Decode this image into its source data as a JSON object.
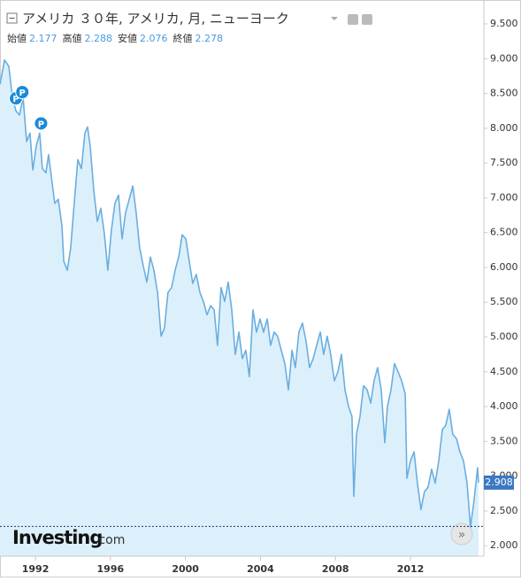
{
  "chart_data": {
    "type": "line",
    "title": "アメリカ ３０年, アメリカ, 月, ニューヨーク",
    "stats": [
      {
        "label": "始値",
        "value": 2.177
      },
      {
        "label": "高値",
        "value": 2.288
      },
      {
        "label": "安値",
        "value": 2.076
      },
      {
        "label": "終値",
        "value": 2.278
      }
    ],
    "logo": [
      "Investing",
      ".com"
    ],
    "annotations": [
      {
        "label": "P",
        "x": 1990.96,
        "y": 8.43
      },
      {
        "label": "P",
        "x": 1991.3,
        "y": 8.52
      },
      {
        "label": "P",
        "x": 1992.3,
        "y": 8.07
      }
    ],
    "xlim": [
      1990.11,
      2015.82
    ],
    "xticks": [
      1992,
      1996,
      2000,
      2004,
      2008,
      2012
    ],
    "ylim": [
      1.85,
      9.78
    ],
    "yticks": [
      {
        "value": 2.0,
        "label": "2.000"
      },
      {
        "value": 2.5,
        "label": "2.500"
      },
      {
        "value": 3.0,
        "label": "3.000"
      },
      {
        "value": 3.5,
        "label": "3.500"
      },
      {
        "value": 4.0,
        "label": "4.000"
      },
      {
        "value": 4.5,
        "label": "4.500"
      },
      {
        "value": 5.0,
        "label": "5.000"
      },
      {
        "value": 5.5,
        "label": "5.500"
      },
      {
        "value": 6.0,
        "label": "6.000"
      },
      {
        "value": 6.5,
        "label": "6.500"
      },
      {
        "value": 7.0,
        "label": "7.000"
      },
      {
        "value": 7.5,
        "label": "7.500"
      },
      {
        "value": 8.0,
        "label": "8.000"
      },
      {
        "value": 8.5,
        "label": "8.500"
      },
      {
        "value": 9.0,
        "label": "9.000"
      },
      {
        "value": 9.5,
        "label": "9.500"
      }
    ],
    "series": [
      {
        "name": "アメリカ ３０年",
        "color": "#6aaee0",
        "x": [
          1990.11,
          1990.35,
          1990.58,
          1990.77,
          1990.96,
          1991.15,
          1991.34,
          1991.53,
          1991.71,
          1991.86,
          1992.04,
          1992.23,
          1992.37,
          1992.56,
          1992.7,
          1992.85,
          1993.03,
          1993.22,
          1993.41,
          1993.51,
          1993.7,
          1993.88,
          1994.07,
          1994.26,
          1994.45,
          1994.64,
          1994.78,
          1994.92,
          1995.11,
          1995.3,
          1995.49,
          1995.68,
          1995.86,
          1996.05,
          1996.24,
          1996.43,
          1996.62,
          1996.81,
          1997.0,
          1997.19,
          1997.37,
          1997.56,
          1997.75,
          1997.94,
          1998.13,
          1998.32,
          1998.51,
          1998.7,
          1998.88,
          1999.07,
          1999.26,
          1999.45,
          1999.64,
          1999.83,
          2000.02,
          2000.2,
          2000.39,
          2000.58,
          2000.77,
          2000.96,
          2001.15,
          2001.34,
          2001.53,
          2001.71,
          2001.9,
          2002.09,
          2002.28,
          2002.47,
          2002.66,
          2002.85,
          2003.03,
          2003.22,
          2003.41,
          2003.6,
          2003.79,
          2003.98,
          2004.17,
          2004.36,
          2004.54,
          2004.73,
          2004.92,
          2005.11,
          2005.3,
          2005.49,
          2005.68,
          2005.86,
          2006.05,
          2006.24,
          2006.43,
          2006.62,
          2006.81,
          2007.0,
          2007.19,
          2007.37,
          2007.56,
          2007.75,
          2007.94,
          2008.13,
          2008.32,
          2008.51,
          2008.7,
          2008.88,
          2008.98,
          2009.12,
          2009.31,
          2009.5,
          2009.69,
          2009.88,
          2010.06,
          2010.25,
          2010.44,
          2010.63,
          2010.77,
          2010.96,
          2011.15,
          2011.34,
          2011.53,
          2011.72,
          2011.81,
          2012.0,
          2012.19,
          2012.37,
          2012.56,
          2012.75,
          2012.94,
          2013.13,
          2013.32,
          2013.51,
          2013.7,
          2013.88,
          2014.07,
          2014.26,
          2014.45,
          2014.64,
          2014.83,
          2015.02,
          2015.2,
          2015.39,
          2015.58,
          2015.63
        ],
        "values": [
          8.63,
          8.98,
          8.89,
          8.44,
          8.25,
          8.19,
          8.44,
          7.81,
          7.93,
          7.4,
          7.74,
          7.93,
          7.42,
          7.36,
          7.62,
          7.3,
          6.92,
          6.98,
          6.6,
          6.09,
          5.96,
          6.28,
          6.92,
          7.55,
          7.42,
          7.93,
          8.02,
          7.74,
          7.11,
          6.66,
          6.85,
          6.47,
          5.96,
          6.53,
          6.92,
          7.04,
          6.41,
          6.79,
          6.98,
          7.17,
          6.79,
          6.28,
          6.02,
          5.79,
          6.15,
          5.96,
          5.64,
          5.01,
          5.13,
          5.64,
          5.71,
          5.96,
          6.15,
          6.47,
          6.41,
          6.09,
          5.77,
          5.9,
          5.64,
          5.51,
          5.32,
          5.45,
          5.39,
          4.88,
          5.71,
          5.51,
          5.79,
          5.39,
          4.75,
          5.07,
          4.69,
          4.81,
          4.43,
          5.39,
          5.07,
          5.26,
          5.07,
          5.26,
          4.88,
          5.07,
          5.01,
          4.81,
          4.62,
          4.24,
          4.81,
          4.56,
          5.07,
          5.2,
          4.94,
          4.56,
          4.69,
          4.88,
          5.07,
          4.75,
          5.01,
          4.75,
          4.37,
          4.5,
          4.75,
          4.24,
          4.0,
          3.86,
          2.71,
          3.6,
          3.86,
          4.3,
          4.24,
          4.05,
          4.37,
          4.56,
          4.24,
          3.48,
          4.0,
          4.24,
          4.62,
          4.5,
          4.37,
          4.18,
          2.97,
          3.22,
          3.35,
          2.9,
          2.52,
          2.78,
          2.84,
          3.1,
          2.9,
          3.22,
          3.67,
          3.73,
          3.96,
          3.6,
          3.54,
          3.35,
          3.22,
          2.9,
          2.27,
          2.65,
          3.12,
          2.908
        ]
      }
    ]
  }
}
